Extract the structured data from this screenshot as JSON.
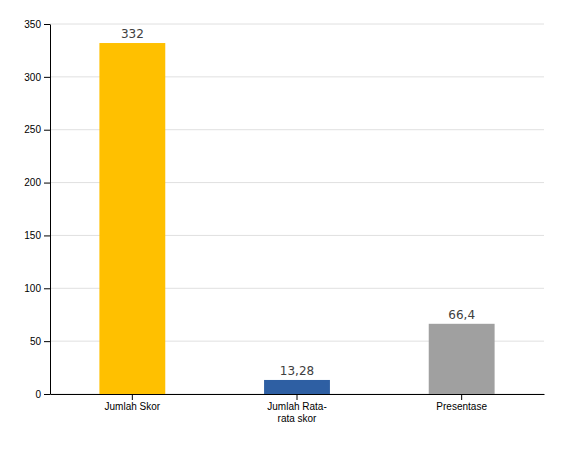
{
  "chart_data": {
    "type": "bar",
    "categories": [
      "Jumlah Skor",
      "Jumlah Rata-\nrata skor",
      "Presentase"
    ],
    "values": [
      332,
      13.28,
      66.4
    ],
    "value_labels": [
      "332",
      "13,28",
      "66,4"
    ],
    "colors": [
      "#FFC000",
      "#2E5FA3",
      "#A0A0A0"
    ],
    "ylim": [
      0,
      350
    ],
    "yticks": [
      0,
      50,
      100,
      150,
      200,
      250,
      300,
      350
    ],
    "grid": true,
    "data_labels": true
  }
}
